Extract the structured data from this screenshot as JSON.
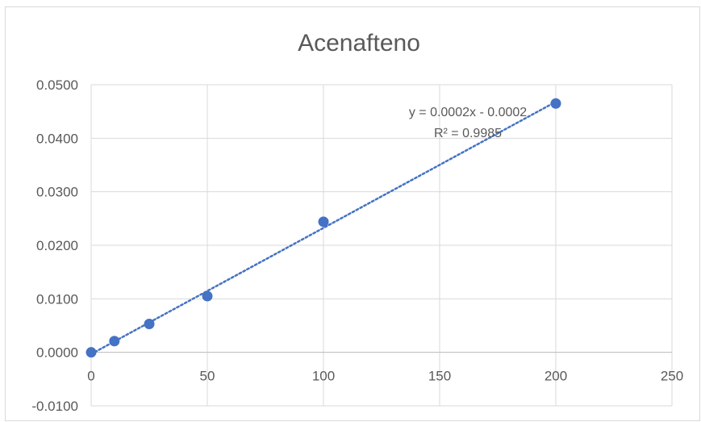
{
  "chart_data": {
    "type": "scatter",
    "title": "Acenafteno",
    "xlabel": "",
    "ylabel": "",
    "xlim": [
      0,
      250
    ],
    "ylim": [
      -0.01,
      0.05
    ],
    "x_ticks": [
      "0",
      "50",
      "100",
      "150",
      "200",
      "250"
    ],
    "y_ticks": [
      "-0.0100",
      "0.0000",
      "0.0100",
      "0.0200",
      "0.0300",
      "0.0400",
      "0.0500"
    ],
    "x_tick_values": [
      0,
      50,
      100,
      150,
      200,
      250
    ],
    "y_tick_values": [
      -0.01,
      0,
      0.01,
      0.02,
      0.03,
      0.04,
      0.05
    ],
    "grid": true,
    "series": [
      {
        "x": [
          0,
          10,
          25,
          50,
          100,
          200
        ],
        "y": [
          0.0,
          0.0021,
          0.0053,
          0.0105,
          0.0244,
          0.0465
        ],
        "color": "#4472c4",
        "trendline": {
          "type": "linear",
          "style": "dotted",
          "equation": "y = 0.0002x - 0.0002",
          "r_squared": "R² = 0.9985"
        }
      }
    ]
  }
}
